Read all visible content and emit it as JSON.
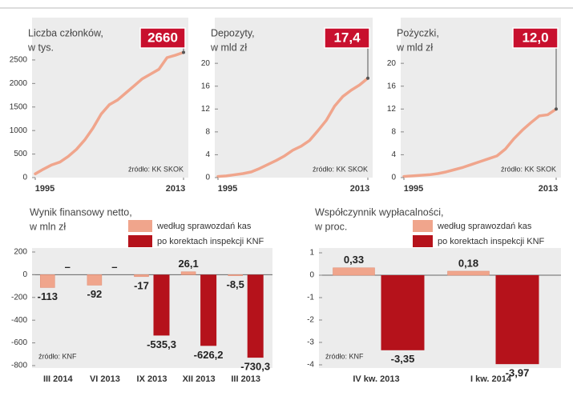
{
  "chart_data": [
    {
      "type": "line",
      "title": [
        "Liczba członków,",
        "w tys."
      ],
      "x": [
        1995,
        1996,
        1997,
        1998,
        1999,
        2000,
        2001,
        2002,
        2003,
        2004,
        2005,
        2006,
        2007,
        2008,
        2009,
        2010,
        2011,
        2012,
        2013
      ],
      "values": [
        80,
        180,
        270,
        330,
        450,
        600,
        800,
        1050,
        1350,
        1550,
        1650,
        1800,
        1950,
        2100,
        2200,
        2300,
        2550,
        2600,
        2660
      ],
      "color": "#f0a58c",
      "xlim": [
        1995,
        2013
      ],
      "xticks": [
        1995,
        2013
      ],
      "ylim": [
        0,
        3400
      ],
      "yticks": [
        0,
        500,
        1000,
        1500,
        2000,
        2500
      ],
      "end_label": "2660",
      "end_label_color": "#c8102e",
      "source": "źródło: KK SKOK"
    },
    {
      "type": "line",
      "title": [
        "Depozyty,",
        "w mld zł"
      ],
      "x": [
        1995,
        1996,
        1997,
        1998,
        1999,
        2000,
        2001,
        2002,
        2003,
        2004,
        2005,
        2006,
        2007,
        2008,
        2009,
        2010,
        2011,
        2012,
        2013
      ],
      "values": [
        0.2,
        0.3,
        0.5,
        0.7,
        1,
        1.6,
        2.3,
        3,
        3.8,
        4.8,
        5.5,
        6.5,
        8.2,
        10,
        12.5,
        14.2,
        15.3,
        16.2,
        17.4
      ],
      "color": "#f0a58c",
      "xlim": [
        1995,
        2013
      ],
      "xticks": [
        1995,
        2013
      ],
      "ylim": [
        0,
        28
      ],
      "yticks": [
        0,
        4,
        8,
        12,
        16,
        20
      ],
      "end_label": "17,4",
      "end_label_color": "#c8102e",
      "source": "źródło: KK SKOK"
    },
    {
      "type": "line",
      "title": [
        "Pożyczki,",
        "w mld zł"
      ],
      "x": [
        1995,
        1996,
        1997,
        1998,
        1999,
        2000,
        2001,
        2002,
        2003,
        2004,
        2005,
        2006,
        2007,
        2008,
        2009,
        2010,
        2011,
        2012,
        2013
      ],
      "values": [
        0.2,
        0.3,
        0.4,
        0.5,
        0.7,
        1,
        1.4,
        1.8,
        2.3,
        2.8,
        3.3,
        3.8,
        5,
        6.8,
        8.3,
        9.6,
        10.8,
        11,
        12.0
      ],
      "color": "#f0a58c",
      "xlim": [
        1995,
        2013
      ],
      "xticks": [
        1995,
        2013
      ],
      "ylim": [
        0,
        28
      ],
      "yticks": [
        0,
        4,
        8,
        12,
        16,
        20
      ],
      "end_label": "12,0",
      "end_label_color": "#c8102e",
      "source": "źródło: KK SKOK"
    },
    {
      "type": "bar",
      "title": [
        "Wynik finansowy netto,",
        "w mln zł"
      ],
      "categories": [
        "III 2014",
        "VI 2013",
        "IX 2013",
        "XII 2013",
        "III 2013"
      ],
      "series": [
        {
          "name": "według sprawozdań kas",
          "color": "#f0a58c",
          "values": [
            -113,
            -92,
            -17,
            26.1,
            -8.5
          ],
          "value_labels": [
            "-113",
            "-92",
            "-17",
            "26,1",
            "-8,5"
          ]
        },
        {
          "name": "po korektach inspekcji KNF",
          "color": "#b5121b",
          "values": [
            null,
            null,
            -535.3,
            -626.2,
            -730.3
          ],
          "value_labels": [
            "–",
            "–",
            "-535,3",
            "-626,2",
            "-730,3"
          ]
        }
      ],
      "ylim": [
        -800,
        200
      ],
      "yticks": [
        200,
        0,
        -200,
        -400,
        -600,
        -800
      ],
      "source": "źródło: KNF"
    },
    {
      "type": "bar",
      "title": [
        "Współczynnik wypłacalności,",
        "w proc."
      ],
      "categories": [
        "IV kw. 2013",
        "I kw. 2014"
      ],
      "series": [
        {
          "name": "według sprawozdań kas",
          "color": "#f0a58c",
          "values": [
            0.33,
            0.18
          ],
          "value_labels": [
            "0,33",
            "0,18"
          ]
        },
        {
          "name": "po korektach inspekcji KNF",
          "color": "#b5121b",
          "values": [
            -3.35,
            -3.97
          ],
          "value_labels": [
            "-3,35",
            "-3,97"
          ]
        }
      ],
      "ylim": [
        -4,
        1
      ],
      "yticks": [
        1,
        0,
        -1,
        -2,
        -3,
        -4
      ],
      "source": "źródło: KNF"
    }
  ]
}
